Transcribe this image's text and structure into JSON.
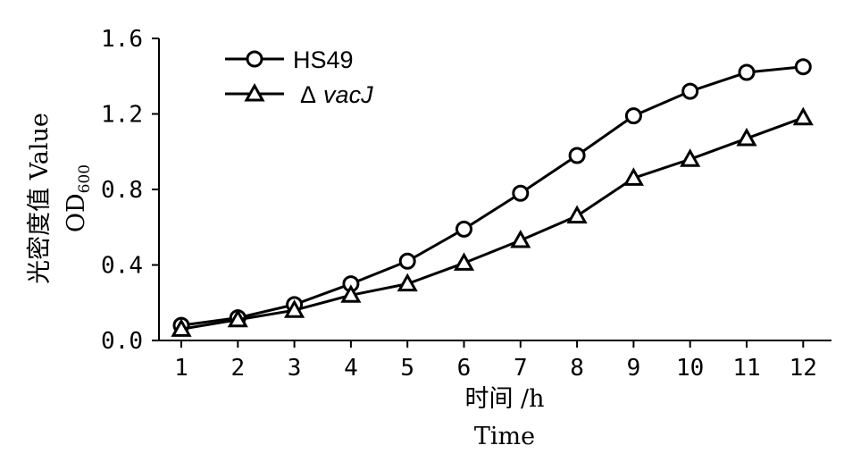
{
  "chart_data": {
    "type": "line",
    "x": [
      1,
      2,
      3,
      4,
      5,
      6,
      7,
      8,
      9,
      10,
      11,
      12
    ],
    "series": [
      {
        "name": "HS49",
        "marker": "circle",
        "values": [
          0.08,
          0.12,
          0.19,
          0.3,
          0.42,
          0.59,
          0.78,
          0.98,
          1.19,
          1.32,
          1.42,
          1.45
        ]
      },
      {
        "name_prefix": "Δ",
        "name": "vacJ",
        "marker": "triangle",
        "values": [
          0.06,
          0.11,
          0.16,
          0.24,
          0.3,
          0.41,
          0.53,
          0.66,
          0.86,
          0.96,
          1.07,
          1.18
        ]
      }
    ],
    "xlabel_cn": "时间 /h",
    "xlabel_en": "Time",
    "ylabel_cn": "光密度值 Value",
    "ylabel_od": "OD",
    "ylabel_sub": "600",
    "ylim": [
      0.0,
      1.6
    ],
    "yticks": [
      "0.0",
      "0.4",
      "0.8",
      "1.2",
      "1.6"
    ],
    "xticks": [
      "1",
      "2",
      "3",
      "4",
      "5",
      "6",
      "7",
      "8",
      "9",
      "10",
      "11",
      "12"
    ],
    "grid": false,
    "legend_position": "top-left",
    "line_color": "#000000"
  }
}
